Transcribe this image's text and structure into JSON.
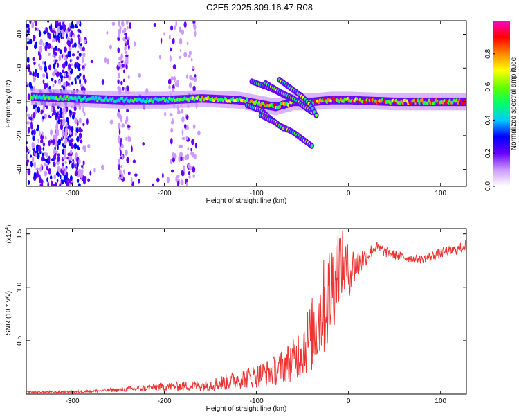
{
  "title": "C2E5.2025.309.16.47.R08",
  "chart_data": [
    {
      "type": "heatmap",
      "xlabel": "Height of straight line (km)",
      "ylabel": "Frequency (Hz)",
      "xlim": [
        -350,
        128
      ],
      "ylim": [
        -50,
        48
      ],
      "xticks": [
        -300,
        -200,
        -100,
        0,
        100
      ],
      "yticks": [
        -40,
        -20,
        0,
        20,
        40
      ],
      "colorbar": {
        "label": "Normalized spectral amplitude",
        "range": [
          0,
          1
        ],
        "ticks": [
          "0.0",
          "0.2",
          "0.4",
          "0.6",
          "0.8"
        ],
        "colors": [
          "#ffffff",
          "#cc99ff",
          "#6600ff",
          "#0000ff",
          "#00ccff",
          "#00ff66",
          "#66ff00",
          "#ffff00",
          "#ff8800",
          "#ff0000",
          "#ff00cc"
        ]
      },
      "ridge": [
        [
          -345,
          3
        ],
        [
          -300,
          2
        ],
        [
          -250,
          1
        ],
        [
          -200,
          1
        ],
        [
          -160,
          2
        ],
        [
          -120,
          1
        ],
        [
          -100,
          -1
        ],
        [
          -80,
          -3
        ],
        [
          -60,
          0
        ],
        [
          -40,
          0
        ],
        [
          -20,
          1
        ],
        [
          0,
          1
        ],
        [
          50,
          0
        ],
        [
          100,
          0
        ],
        [
          128,
          0
        ]
      ],
      "branches": [
        [
          [
            -105,
            12
          ],
          [
            -85,
            8
          ],
          [
            -70,
            4
          ],
          [
            -55,
            0
          ],
          [
            -45,
            -4
          ]
        ],
        [
          [
            -90,
            11
          ],
          [
            -75,
            6
          ],
          [
            -60,
            2
          ],
          [
            -50,
            -2
          ],
          [
            -40,
            -6
          ]
        ],
        [
          [
            -75,
            13
          ],
          [
            -60,
            7
          ],
          [
            -50,
            3
          ],
          [
            -40,
            -3
          ],
          [
            -35,
            -8
          ]
        ],
        [
          [
            -110,
            -2
          ],
          [
            -95,
            -5
          ],
          [
            -85,
            -10
          ],
          [
            -75,
            -14
          ],
          [
            -60,
            -18
          ],
          [
            -50,
            -22
          ],
          [
            -40,
            -26
          ]
        ],
        [
          [
            -95,
            -8
          ],
          [
            -80,
            -12
          ],
          [
            -70,
            -16
          ]
        ]
      ]
    },
    {
      "type": "line",
      "xlabel": "Height of straight line (km)",
      "ylabel": "SNR (10 * v/v)",
      "yscale_label": "(x10",
      "yscale_exp": "4",
      "xlim": [
        -350,
        128
      ],
      "ylim": [
        0,
        1.55
      ],
      "xticks": [
        -300,
        -200,
        -100,
        0,
        100
      ],
      "yticks": [
        "0.5",
        "1.0",
        "1.5"
      ],
      "color": "#ee3333",
      "series": [
        {
          "x": [
            -350,
            -300,
            -250,
            -200,
            -160,
            -140,
            -120,
            -100,
            -80,
            -60,
            -40,
            -30,
            -20,
            -15,
            -10,
            0,
            10,
            20,
            30,
            40,
            60,
            80,
            100,
            120,
            128
          ],
          "y": [
            0.02,
            0.02,
            0.04,
            0.07,
            0.08,
            0.1,
            0.14,
            0.17,
            0.22,
            0.32,
            0.55,
            0.75,
            0.95,
            1.1,
            1.25,
            1.15,
            1.22,
            1.3,
            1.38,
            1.33,
            1.28,
            1.26,
            1.32,
            1.36,
            1.4
          ],
          "noise": [
            0.01,
            0.01,
            0.02,
            0.04,
            0.05,
            0.07,
            0.09,
            0.11,
            0.14,
            0.2,
            0.35,
            0.45,
            0.5,
            0.45,
            0.35,
            0.25,
            0.15,
            0.08,
            0.05,
            0.05,
            0.04,
            0.04,
            0.05,
            0.05,
            0.05
          ]
        }
      ]
    }
  ]
}
